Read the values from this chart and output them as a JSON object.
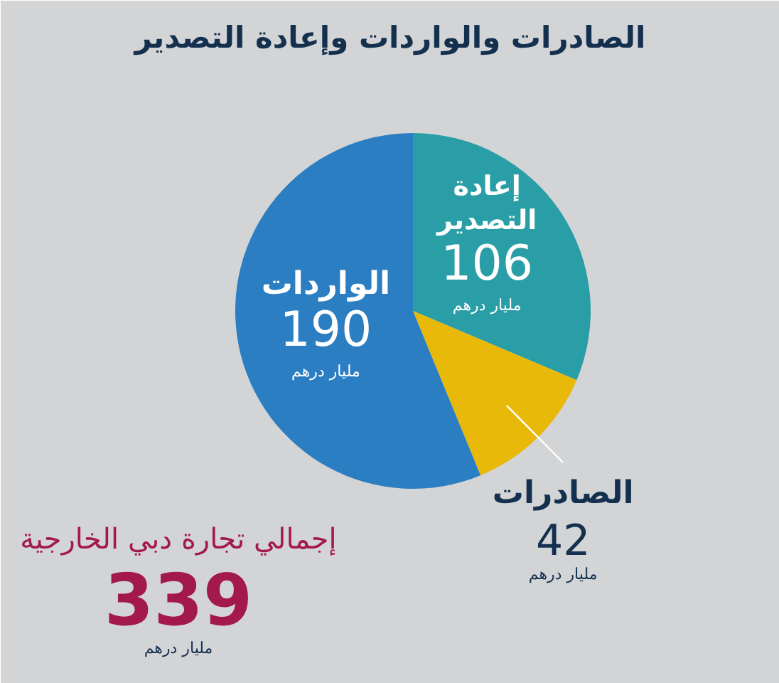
{
  "chart_data": {
    "type": "pie",
    "title": "الصادرات والواردات وإعادة التصدير",
    "categories": [
      "إعادة التصدير",
      "الصادرات",
      "الواردات"
    ],
    "values": [
      106,
      42,
      190
    ],
    "colors": [
      "#2a9ea6",
      "#e9b90a",
      "#2b7ec1"
    ],
    "data_labels": true,
    "annotations": [
      {
        "text": "مليار درهم",
        "x": "إعادة التصدير"
      },
      {
        "text": "مليار درهم",
        "x": "الصادرات"
      },
      {
        "text": "مليار درهم",
        "x": "الواردات"
      },
      "إجمالي تجارة دبي الخارجية",
      "339",
      "مليار درهم"
    ]
  }
}
